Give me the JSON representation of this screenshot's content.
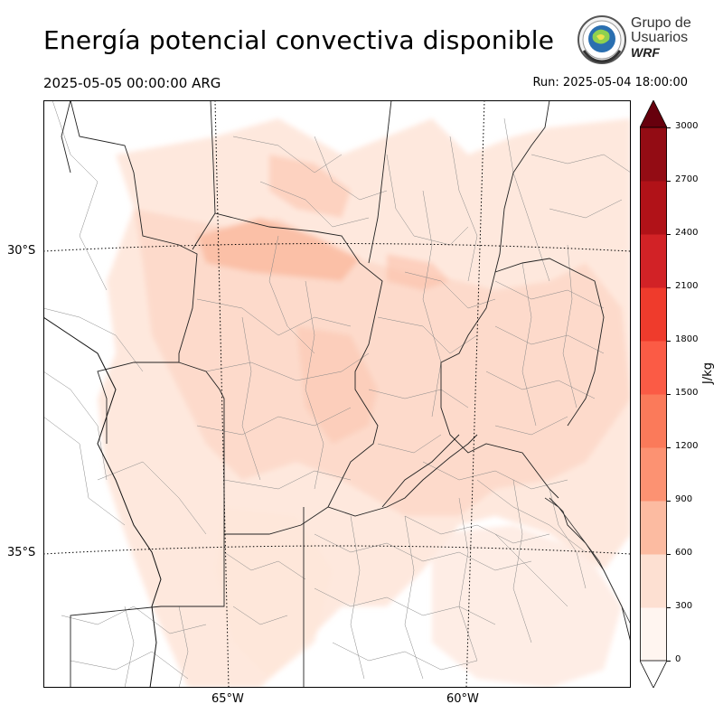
{
  "title": "Energía potencial convectiva disponible",
  "valid_time": "2025-05-05 00:00:00 ARG",
  "run_time": "Run: 2025-05-04 18:00:00",
  "logo": {
    "line1": "Grupo de",
    "line2": "Usuarios",
    "line3": "WRF",
    "icon": "globe-seal-icon"
  },
  "map": {
    "lat_labels": [
      "30°S",
      "35°S"
    ],
    "lon_labels": [
      "65°W",
      "60°W"
    ],
    "field": "CAPE"
  },
  "colorbar": {
    "unit": "J/kg",
    "ticks": [
      "0",
      "300",
      "600",
      "900",
      "1200",
      "1500",
      "1800",
      "2100",
      "2400",
      "2700",
      "3000"
    ],
    "colors": [
      "#fff5f0",
      "#fde0d2",
      "#fcbba1",
      "#fc9272",
      "#fb7a5a",
      "#fb5b45",
      "#ef3b2c",
      "#d22226",
      "#b11218",
      "#930c14",
      "#67000d"
    ],
    "extend": "both"
  }
}
